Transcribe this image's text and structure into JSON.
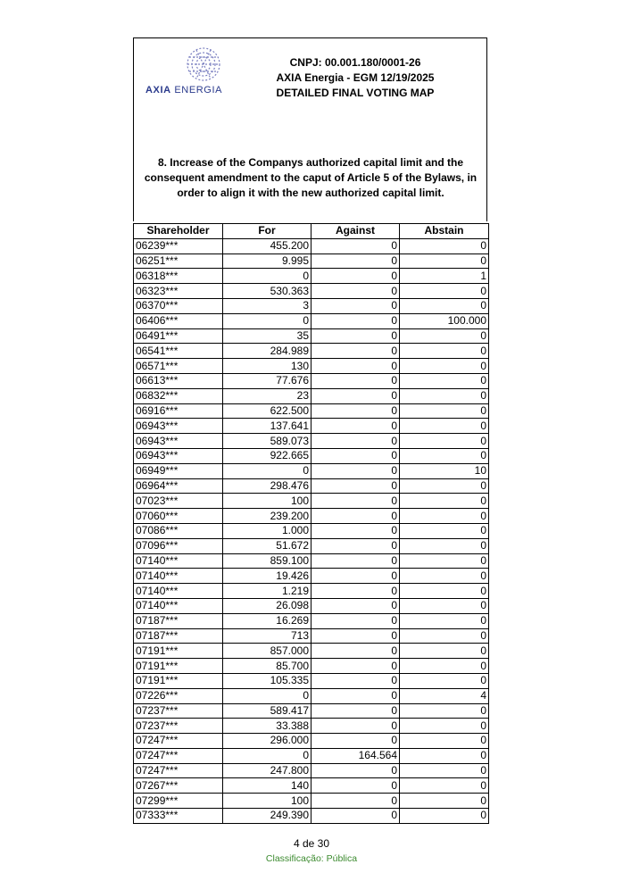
{
  "logo": {
    "text_bold": "AXIA",
    "text_rest": " ENERGIA",
    "color": "#2a3a8c"
  },
  "header": {
    "cnpj": "CNPJ: 00.001.180/0001-26",
    "meeting": "AXIA Energia - EGM  12/19/2025",
    "title": "DETAILED FINAL VOTING MAP"
  },
  "question": "8.  Increase of the Companys authorized capital limit and the consequent amendment to the caput of Article 5 of the Bylaws, in order to align it with the new authorized capital limit.",
  "table": {
    "columns": [
      "Shareholder",
      "For",
      "Against",
      "Abstain"
    ],
    "rows": [
      [
        "06239***",
        "455.200",
        "0",
        "0"
      ],
      [
        "06251***",
        "9.995",
        "0",
        "0"
      ],
      [
        "06318***",
        "0",
        "0",
        "1"
      ],
      [
        "06323***",
        "530.363",
        "0",
        "0"
      ],
      [
        "06370***",
        "3",
        "0",
        "0"
      ],
      [
        "06406***",
        "0",
        "0",
        "100.000"
      ],
      [
        "06491***",
        "35",
        "0",
        "0"
      ],
      [
        "06541***",
        "284.989",
        "0",
        "0"
      ],
      [
        "06571***",
        "130",
        "0",
        "0"
      ],
      [
        "06613***",
        "77.676",
        "0",
        "0"
      ],
      [
        "06832***",
        "23",
        "0",
        "0"
      ],
      [
        "06916***",
        "622.500",
        "0",
        "0"
      ],
      [
        "06943***",
        "137.641",
        "0",
        "0"
      ],
      [
        "06943***",
        "589.073",
        "0",
        "0"
      ],
      [
        "06943***",
        "922.665",
        "0",
        "0"
      ],
      [
        "06949***",
        "0",
        "0",
        "10"
      ],
      [
        "06964***",
        "298.476",
        "0",
        "0"
      ],
      [
        "07023***",
        "100",
        "0",
        "0"
      ],
      [
        "07060***",
        "239.200",
        "0",
        "0"
      ],
      [
        "07086***",
        "1.000",
        "0",
        "0"
      ],
      [
        "07096***",
        "51.672",
        "0",
        "0"
      ],
      [
        "07140***",
        "859.100",
        "0",
        "0"
      ],
      [
        "07140***",
        "19.426",
        "0",
        "0"
      ],
      [
        "07140***",
        "1.219",
        "0",
        "0"
      ],
      [
        "07140***",
        "26.098",
        "0",
        "0"
      ],
      [
        "07187***",
        "16.269",
        "0",
        "0"
      ],
      [
        "07187***",
        "713",
        "0",
        "0"
      ],
      [
        "07191***",
        "857.000",
        "0",
        "0"
      ],
      [
        "07191***",
        "85.700",
        "0",
        "0"
      ],
      [
        "07191***",
        "105.335",
        "0",
        "0"
      ],
      [
        "07226***",
        "0",
        "0",
        "4"
      ],
      [
        "07237***",
        "589.417",
        "0",
        "0"
      ],
      [
        "07237***",
        "33.388",
        "0",
        "0"
      ],
      [
        "07247***",
        "296.000",
        "0",
        "0"
      ],
      [
        "07247***",
        "0",
        "164.564",
        "0"
      ],
      [
        "07247***",
        "247.800",
        "0",
        "0"
      ],
      [
        "07267***",
        "140",
        "0",
        "0"
      ],
      [
        "07299***",
        "100",
        "0",
        "0"
      ],
      [
        "07333***",
        "249.390",
        "0",
        "0"
      ]
    ]
  },
  "footer": {
    "page": "4 de 30",
    "classification": "Classificação: Pública",
    "classification_color": "#3b8a2e"
  }
}
